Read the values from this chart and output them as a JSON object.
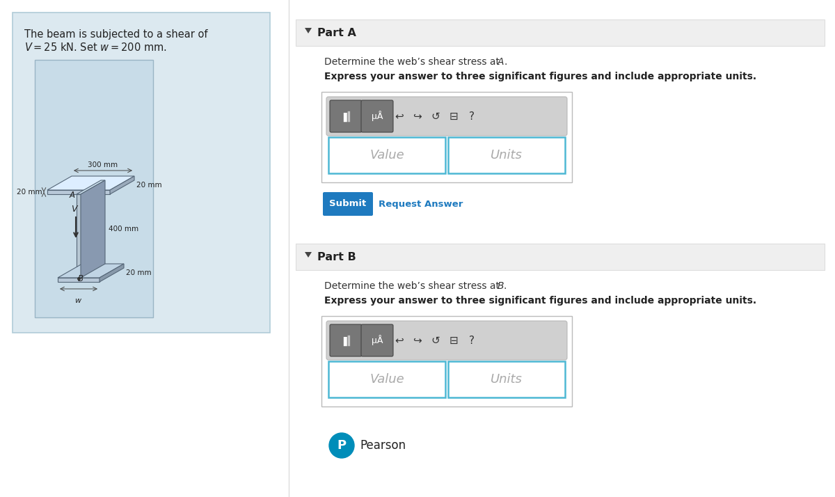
{
  "bg_color": "#ffffff",
  "left_panel_bg": "#dce9f0",
  "left_panel_border": "#b0ccd8",
  "img_bg": "#c8dce8",
  "img_border": "#9ab5c5",
  "part_header_bg": "#efefef",
  "part_header_border": "#dddddd",
  "input_box_bg": "#ffffff",
  "input_box_border": "#bbbbbb",
  "toolbar_bg": "#d0d0d0",
  "toolbar_btn_bg": "#888888",
  "toolbar_btn_border": "#555555",
  "input_field_border": "#4db8d4",
  "submit_bg": "#1e7abf",
  "submit_text_color": "#ffffff",
  "request_color": "#1e7abf",
  "pearson_blue": "#008db9",
  "text_dark": "#222222",
  "text_med": "#333333",
  "text_light": "#aaaaaa",
  "triangle_color": "#444444",
  "beam_steel1": "#b8c8d8",
  "beam_steel2": "#9aaabb",
  "beam_steel3": "#ccdde8",
  "beam_steel4": "#8899aa",
  "beam_steel5": "#ddeeff",
  "beam_edge": "#556677",
  "problem_text_line1": "The beam is subjected to a shear of",
  "problem_text_line2_pre": "V",
  "problem_text_line2_eq": " = 25 kN. Set ",
  "problem_text_line2_w": "w",
  "problem_text_line2_post": " = 200 mm.",
  "dim_300mm": "300 mm",
  "dim_20mm_left": "20 mm",
  "dim_20mm_right": "20 mm",
  "dim_400mm": "400 mm",
  "dim_20mm_bot": "20 mm",
  "label_A": "A",
  "label_B": "B",
  "label_V": "V",
  "label_w": "w",
  "part_a_header": "Part A",
  "part_b_header": "Part B",
  "desc_pre": "Determine the web’s shear stress at ",
  "desc_A": "A",
  "desc_B": "B",
  "desc_dot": ".",
  "express_note": "Express your answer to three significant figures and include appropriate units.",
  "submit_text": "Submit",
  "request_answer_text": "Request Answer",
  "value_placeholder": "Value",
  "units_placeholder": "Units",
  "pearson_text": "Pearson"
}
